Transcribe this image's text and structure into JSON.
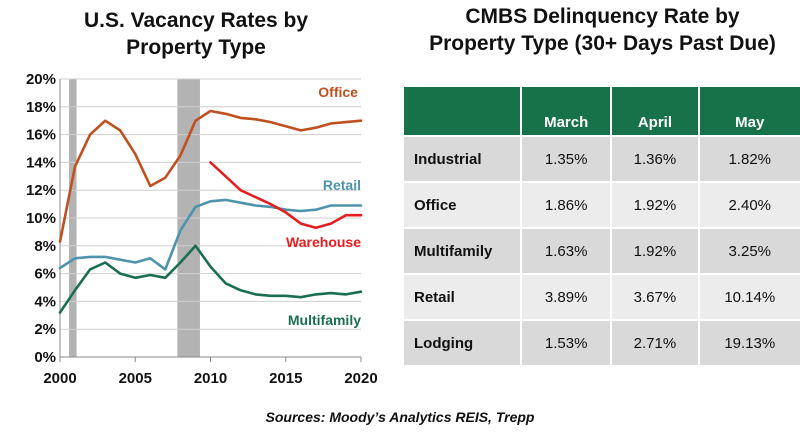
{
  "chart_data": {
    "type": "line",
    "title_lines": [
      "U.S. Vacancy Rates by",
      "Property Type"
    ],
    "xlabel": "",
    "ylabel": "",
    "xlim": [
      2000,
      2020
    ],
    "ylim": [
      0,
      20
    ],
    "x_ticks": [
      2000,
      2005,
      2010,
      2015,
      2020
    ],
    "y_ticks": [
      0,
      2,
      4,
      6,
      8,
      10,
      12,
      14,
      16,
      18,
      20
    ],
    "y_tick_labels": [
      "0%",
      "2%",
      "4%",
      "6%",
      "8%",
      "10%",
      "12%",
      "14%",
      "16%",
      "18%",
      "20%"
    ],
    "grid": true,
    "recession_shading": [
      [
        2000.6,
        2001.1
      ],
      [
        2007.8,
        2009.3
      ]
    ],
    "series": [
      {
        "name": "Office",
        "color": "#c0501f",
        "x": [
          2000,
          2001,
          2002,
          2003,
          2004,
          2005,
          2006,
          2007,
          2008,
          2009,
          2010,
          2011,
          2012,
          2013,
          2014,
          2015,
          2016,
          2017,
          2018,
          2019,
          2020
        ],
        "values": [
          8.3,
          13.7,
          16.0,
          17.0,
          16.3,
          14.6,
          12.3,
          12.9,
          14.5,
          17.0,
          17.7,
          17.5,
          17.2,
          17.1,
          16.9,
          16.6,
          16.3,
          16.5,
          16.8,
          16.9,
          17.0
        ]
      },
      {
        "name": "Retail",
        "color": "#4f93ad",
        "x": [
          2000,
          2001,
          2002,
          2003,
          2004,
          2005,
          2006,
          2007,
          2008,
          2009,
          2010,
          2011,
          2012,
          2013,
          2014,
          2015,
          2016,
          2017,
          2018,
          2019,
          2020
        ],
        "values": [
          6.4,
          7.1,
          7.2,
          7.2,
          7.0,
          6.8,
          7.1,
          6.3,
          9.1,
          10.8,
          11.2,
          11.3,
          11.1,
          10.9,
          10.8,
          10.6,
          10.5,
          10.6,
          10.9,
          10.9,
          10.9
        ]
      },
      {
        "name": "Warehouse",
        "color": "#e51f1f",
        "x": [
          2010,
          2011,
          2012,
          2013,
          2014,
          2015,
          2016,
          2017,
          2018,
          2019,
          2020
        ],
        "values": [
          14.0,
          13.0,
          12.0,
          11.5,
          11.0,
          10.4,
          9.6,
          9.3,
          9.6,
          10.2,
          10.2
        ]
      },
      {
        "name": "Multifamily",
        "color": "#1b6e53",
        "x": [
          2000,
          2001,
          2002,
          2003,
          2004,
          2005,
          2006,
          2007,
          2008,
          2009,
          2010,
          2011,
          2012,
          2013,
          2014,
          2015,
          2016,
          2017,
          2018,
          2019,
          2020
        ],
        "values": [
          3.2,
          4.8,
          6.3,
          6.8,
          6.0,
          5.7,
          5.9,
          5.7,
          6.8,
          8.0,
          6.5,
          5.3,
          4.8,
          4.5,
          4.4,
          4.4,
          4.3,
          4.5,
          4.6,
          4.5,
          4.7
        ]
      }
    ]
  },
  "table": {
    "title_lines": [
      "CMBS Delinquency Rate by",
      "Property Type (30+ Days Past Due)"
    ],
    "columns": [
      "",
      "March",
      "April",
      "May"
    ],
    "rows": [
      {
        "label": "Industrial",
        "values": [
          "1.35%",
          "1.36%",
          "1.82%"
        ]
      },
      {
        "label": "Office",
        "values": [
          "1.86%",
          "1.92%",
          "2.40%"
        ]
      },
      {
        "label": "Multifamily",
        "values": [
          "1.63%",
          "1.92%",
          "3.25%"
        ]
      },
      {
        "label": "Retail",
        "values": [
          "3.89%",
          "3.67%",
          "10.14%"
        ]
      },
      {
        "label": "Lodging",
        "values": [
          "1.53%",
          "2.71%",
          "19.13%"
        ]
      }
    ],
    "header_color": "#17724a"
  },
  "source": "Sources: Moody’s Analytics REIS, Trepp"
}
